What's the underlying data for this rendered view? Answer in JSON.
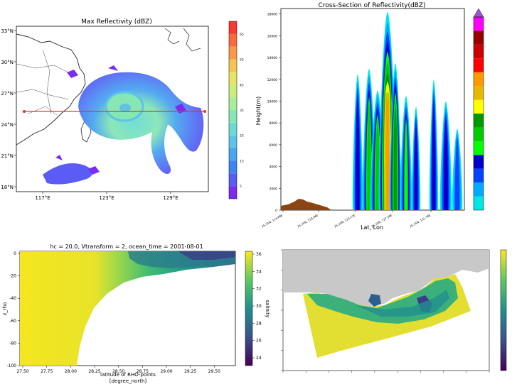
{
  "chart_data": [
    {
      "type": "heatmap",
      "title": "Max Reflectivity (dBZ)",
      "lat_ticks": [
        "33°N",
        "30°N",
        "27°N",
        "24°N",
        "21°N",
        "18°N"
      ],
      "lon_ticks": [
        "117°E",
        "123°E",
        "129°E"
      ],
      "colorbar_ticks": [
        "5",
        "15",
        "25",
        "35",
        "45",
        "55",
        "65"
      ],
      "colorbar_colors": [
        "#7b2cf0",
        "#5a5cf5",
        "#3d85f2",
        "#4aa6f0",
        "#5bc4e8",
        "#6cdbd4",
        "#86e6b4",
        "#a6ee98",
        "#c8ee7c",
        "#e8e466",
        "#f6c454",
        "#f99846",
        "#fa6a3a",
        "#f83a30"
      ],
      "section_line_color": "#ff2a2a"
    },
    {
      "type": "area",
      "title": "Cross-Section of Reflectivity(dBZ)",
      "xlabel": "Lat, Lon",
      "ylabel": "Height(m)",
      "y_ticks": [
        0,
        2000,
        4000,
        6000,
        8000,
        10000,
        12000,
        14000,
        16000,
        18000
      ],
      "x_tick_labels": [
        "25.25N, 114.68E",
        "25.25N, 118.96E",
        "25.25N, 123.22E",
        "25.25N, 127.50E",
        "25.25N, 131.78E"
      ],
      "colorbar_colors": [
        "#00e5e5",
        "#00aaff",
        "#0044ff",
        "#0000cc",
        "#00ff00",
        "#00cc00",
        "#009900",
        "#ffff00",
        "#e6b800",
        "#ff9900",
        "#ff0000",
        "#cc0000",
        "#990000",
        "#ff00ff",
        "#9955cc"
      ],
      "terrain_color": "#8b4513"
    },
    {
      "type": "heatmap",
      "title": "hc = 20.0, Vtransform = 2, ocean_time = 2001-08-01",
      "xlabel": "latitude of RHO-points",
      "xlabel2": "[degree_north]",
      "ylabel": "z_rho",
      "x_ticks": [
        "27.50",
        "27.75",
        "28.00",
        "28.25",
        "28.50",
        "28.75",
        "29.00",
        "29.25",
        "29.50"
      ],
      "y_ticks": [
        "0",
        "-20",
        "-40",
        "-60",
        "-80",
        "-100"
      ],
      "colorbar_ticks": [
        "24",
        "26",
        "28",
        "30",
        "32",
        "34",
        "36"
      ],
      "colorbar_label": "salinity"
    },
    {
      "type": "heatmap",
      "colorbar_colors": [
        "#440154",
        "#3b528b",
        "#21908d",
        "#5dc963",
        "#fde725"
      ],
      "land_color": "#c8c8c8"
    }
  ]
}
